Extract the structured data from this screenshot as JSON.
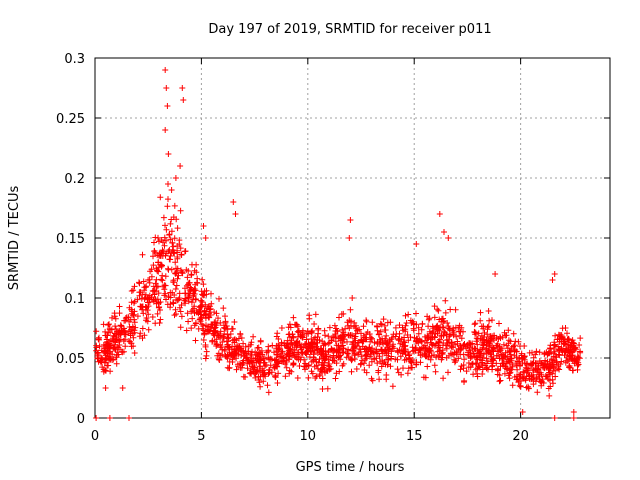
{
  "chart_data": {
    "type": "scatter",
    "title": "Day 197 of 2019, SRMTID for receiver p011",
    "xlabel": "GPS time / hours",
    "ylabel": "SRMTID / TECUs",
    "xlim": [
      0,
      24.2
    ],
    "ylim": [
      0,
      0.3
    ],
    "x_ticks": [
      0,
      5,
      10,
      15,
      20
    ],
    "x_tick_labels": [
      "0",
      "5",
      "10",
      "15",
      "20"
    ],
    "y_ticks": [
      0,
      0.05,
      0.1,
      0.15,
      0.2,
      0.25,
      0.3
    ],
    "y_tick_labels": [
      "0",
      "0.05",
      "0.1",
      "0.15",
      "0.2",
      "0.25",
      "0.3"
    ],
    "grid": true,
    "marker": "plus",
    "series_color": "#ff0000",
    "trend": {
      "x": [
        0.1,
        0.4,
        0.8,
        1.2,
        1.6,
        2.0,
        2.4,
        2.8,
        3.1,
        3.4,
        3.7,
        4.0,
        4.3,
        4.6,
        5.0,
        5.4,
        5.8,
        6.2,
        6.6,
        7.0,
        7.5,
        8.0,
        8.5,
        9.0,
        9.5,
        10.0,
        10.5,
        11.0,
        11.5,
        12.0,
        12.5,
        13.0,
        13.5,
        14.0,
        14.5,
        15.0,
        15.5,
        16.0,
        16.5,
        17.0,
        17.5,
        18.0,
        18.5,
        19.0,
        19.5,
        20.0,
        20.5,
        21.0,
        21.5,
        22.0,
        22.5
      ],
      "y": [
        0.055,
        0.05,
        0.06,
        0.07,
        0.075,
        0.085,
        0.1,
        0.11,
        0.125,
        0.14,
        0.13,
        0.125,
        0.11,
        0.1,
        0.09,
        0.08,
        0.07,
        0.06,
        0.055,
        0.05,
        0.045,
        0.045,
        0.05,
        0.055,
        0.06,
        0.06,
        0.055,
        0.055,
        0.06,
        0.065,
        0.06,
        0.055,
        0.06,
        0.06,
        0.06,
        0.065,
        0.06,
        0.065,
        0.065,
        0.06,
        0.055,
        0.055,
        0.06,
        0.055,
        0.05,
        0.045,
        0.04,
        0.04,
        0.05,
        0.06,
        0.055
      ],
      "spread": [
        0.015,
        0.02,
        0.02,
        0.02,
        0.02,
        0.025,
        0.03,
        0.035,
        0.04,
        0.045,
        0.045,
        0.04,
        0.035,
        0.03,
        0.025,
        0.025,
        0.02,
        0.02,
        0.02,
        0.018,
        0.015,
        0.015,
        0.018,
        0.02,
        0.02,
        0.02,
        0.02,
        0.02,
        0.02,
        0.025,
        0.02,
        0.02,
        0.02,
        0.02,
        0.02,
        0.025,
        0.02,
        0.022,
        0.022,
        0.02,
        0.02,
        0.02,
        0.02,
        0.02,
        0.018,
        0.018,
        0.015,
        0.015,
        0.018,
        0.015,
        0.015
      ]
    },
    "outliers": [
      [
        3.3,
        0.29
      ],
      [
        3.35,
        0.275
      ],
      [
        3.4,
        0.26
      ],
      [
        3.3,
        0.24
      ],
      [
        3.45,
        0.22
      ],
      [
        4.1,
        0.275
      ],
      [
        4.15,
        0.265
      ],
      [
        4.0,
        0.21
      ],
      [
        3.8,
        0.2
      ],
      [
        3.6,
        0.19
      ],
      [
        6.5,
        0.18
      ],
      [
        6.6,
        0.17
      ],
      [
        5.1,
        0.16
      ],
      [
        5.2,
        0.15
      ],
      [
        12.0,
        0.165
      ],
      [
        11.95,
        0.15
      ],
      [
        15.1,
        0.145
      ],
      [
        16.2,
        0.17
      ],
      [
        16.4,
        0.155
      ],
      [
        16.6,
        0.15
      ],
      [
        18.8,
        0.12
      ],
      [
        21.6,
        0.12
      ],
      [
        21.5,
        0.115
      ],
      [
        20.1,
        0.005
      ],
      [
        22.5,
        0.005
      ],
      [
        0.5,
        0.025
      ],
      [
        1.3,
        0.025
      ]
    ],
    "zero_points": [
      0.05,
      0.7,
      1.6,
      21.6,
      22.5
    ],
    "point_count": 2200,
    "x_max_data": 22.8
  }
}
